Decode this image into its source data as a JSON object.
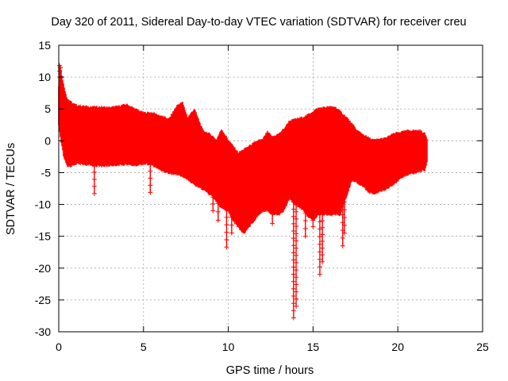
{
  "chart_data": {
    "type": "scatter",
    "title": "Day 320 of 2011, Sidereal Day-to-day VTEC variation (SDTVAR) for receiver creu",
    "xlabel": "GPS time / hours",
    "ylabel": "SDTVAR / TECUs",
    "xlim": [
      0,
      25
    ],
    "ylim": [
      -30,
      15
    ],
    "xticks": [
      0,
      5,
      10,
      15,
      20,
      25
    ],
    "yticks": [
      -30,
      -25,
      -20,
      -15,
      -10,
      -5,
      0,
      5,
      10,
      15
    ],
    "grid": true,
    "legend": "none",
    "series": [
      {
        "name": "SDTVAR",
        "color": "#ff0000",
        "marker": "plus",
        "envelope": {
          "x": [
            0.0,
            0.1,
            0.3,
            0.5,
            0.8,
            1.0,
            1.5,
            2.0,
            2.5,
            3.0,
            3.5,
            4.0,
            4.5,
            5.0,
            5.5,
            6.0,
            6.5,
            7.0,
            7.3,
            7.6,
            8.0,
            8.5,
            9.0,
            9.3,
            9.6,
            10.0,
            10.3,
            10.6,
            10.9,
            11.2,
            11.5,
            11.8,
            12.0,
            12.3,
            12.6,
            13.0,
            13.3,
            13.6,
            14.0,
            14.3,
            14.6,
            15.0,
            15.3,
            15.6,
            16.0,
            16.3,
            16.6,
            17.0,
            17.3,
            17.6,
            18.0,
            18.3,
            18.6,
            19.0,
            19.3,
            19.6,
            20.0,
            20.3,
            20.6,
            21.0,
            21.3,
            21.6,
            21.75
          ],
          "upper": [
            8.5,
            11.5,
            8.5,
            6.5,
            5.8,
            5.5,
            5.3,
            5.2,
            5.2,
            5.1,
            5.3,
            5.6,
            4.9,
            4.3,
            4.3,
            3.8,
            3.3,
            5.5,
            5.9,
            3.5,
            4.9,
            1.5,
            0.8,
            0.0,
            1.7,
            0.0,
            -1.0,
            -2.0,
            -1.5,
            -1.0,
            -0.5,
            0.0,
            0.0,
            1.3,
            0.5,
            1.0,
            1.8,
            3.0,
            3.3,
            3.5,
            3.8,
            4.5,
            5.0,
            5.1,
            5.2,
            5.2,
            4.5,
            3.5,
            2.5,
            1.5,
            0.8,
            0.3,
            0.0,
            0.2,
            0.3,
            0.8,
            1.2,
            1.3,
            1.5,
            1.5,
            1.5,
            1.0,
            0.0
          ],
          "lower": [
            2.5,
            0.5,
            -2.5,
            -4.0,
            -3.8,
            -3.5,
            -3.6,
            -3.8,
            -3.9,
            -3.8,
            -3.7,
            -3.6,
            -3.8,
            -3.5,
            -3.7,
            -4.5,
            -5.0,
            -5.2,
            -5.5,
            -6.0,
            -6.8,
            -7.5,
            -8.5,
            -9.5,
            -10.5,
            -11.0,
            -12.5,
            -13.5,
            -14.5,
            -13.5,
            -12.5,
            -11.5,
            -11.0,
            -10.8,
            -11.5,
            -11.5,
            -10.8,
            -9.0,
            -10.0,
            -10.5,
            -11.5,
            -12.5,
            -11.5,
            -11.5,
            -11.5,
            -11.5,
            -11.5,
            -8.5,
            -6.0,
            -6.5,
            -7.2,
            -8.0,
            -8.2,
            -7.8,
            -7.5,
            -7.0,
            -6.2,
            -5.5,
            -5.2,
            -5.0,
            -4.7,
            -4.5,
            -3.0
          ]
        },
        "spikes": [
          {
            "x": 0.05,
            "y": 11.8
          },
          {
            "x": 0.1,
            "y": 11.5
          },
          {
            "x": 2.1,
            "y": -8.3
          },
          {
            "x": 5.4,
            "y": -8.1
          },
          {
            "x": 9.1,
            "y": -11.0
          },
          {
            "x": 9.4,
            "y": -12.5
          },
          {
            "x": 9.9,
            "y": -16.7
          },
          {
            "x": 10.2,
            "y": -14.5
          },
          {
            "x": 12.6,
            "y": -13.0
          },
          {
            "x": 13.85,
            "y": -27.8
          },
          {
            "x": 14.0,
            "y": -26.0
          },
          {
            "x": 14.55,
            "y": -15.0
          },
          {
            "x": 15.0,
            "y": -13.5
          },
          {
            "x": 15.4,
            "y": -21.0
          },
          {
            "x": 15.55,
            "y": -19.0
          },
          {
            "x": 16.1,
            "y": -10.0
          },
          {
            "x": 16.75,
            "y": -16.5
          },
          {
            "x": 16.85,
            "y": -14.5
          }
        ]
      }
    ]
  }
}
